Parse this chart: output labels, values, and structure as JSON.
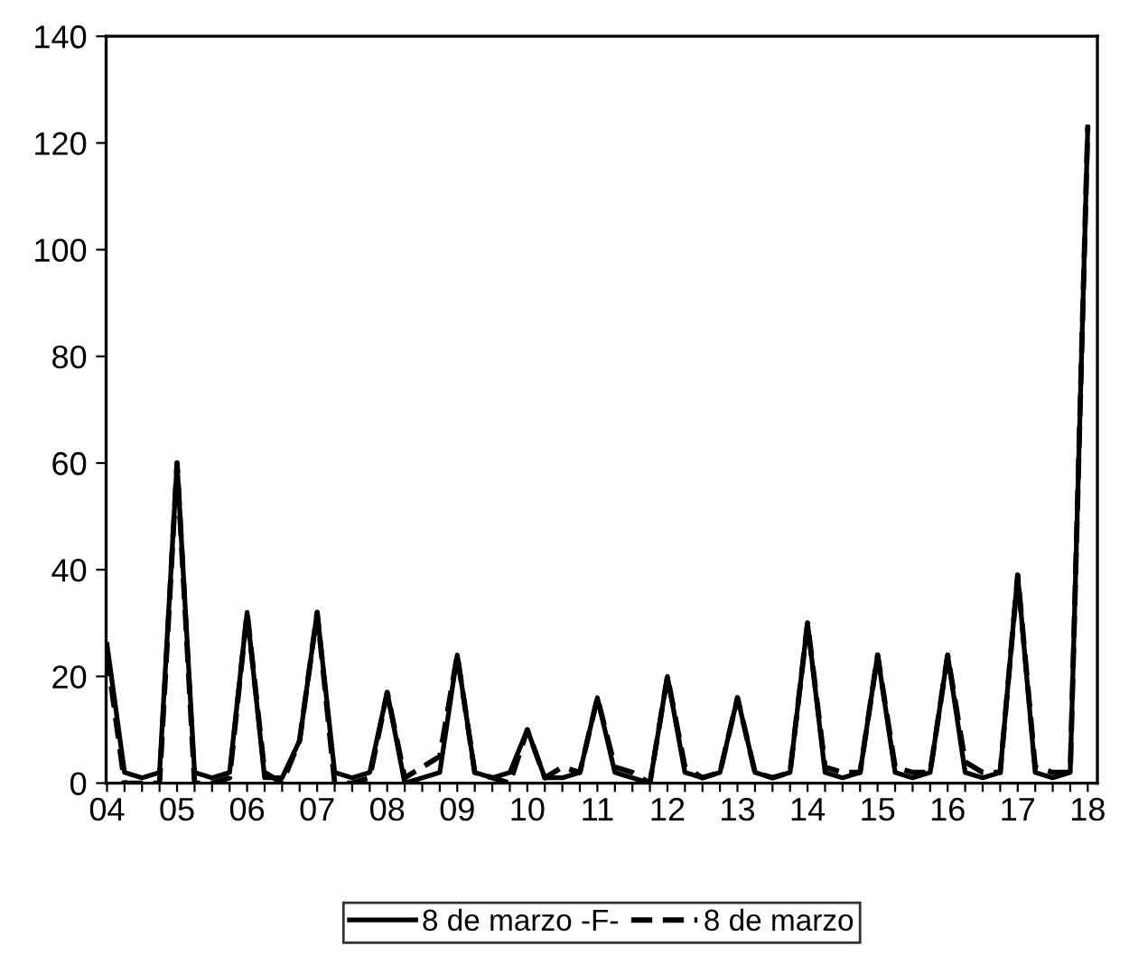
{
  "chart_data": {
    "type": "line",
    "categories": [
      "04",
      null,
      null,
      null,
      "05",
      null,
      null,
      null,
      "06",
      null,
      null,
      null,
      "07",
      null,
      null,
      null,
      "08",
      null,
      null,
      null,
      "09",
      null,
      null,
      null,
      "10",
      null,
      null,
      null,
      "11",
      null,
      null,
      null,
      "12",
      null,
      null,
      null,
      "13",
      null,
      null,
      null,
      "14",
      null,
      null,
      null,
      "15",
      null,
      null,
      null,
      "16",
      null,
      null,
      null,
      "17",
      null,
      null,
      null,
      "18"
    ],
    "series": [
      {
        "name": "8 de marzo -F-",
        "color": "#000000",
        "line_style": "solid",
        "values": [
          26,
          2,
          1,
          2,
          60,
          2,
          1,
          2,
          32,
          1,
          1,
          8,
          32,
          2,
          1,
          2,
          17,
          0,
          1,
          2,
          24,
          2,
          1,
          2,
          10,
          1,
          1,
          2,
          16,
          2,
          1,
          0,
          20,
          2,
          1,
          2,
          16,
          2,
          1,
          2,
          30,
          2,
          1,
          2,
          24,
          2,
          1,
          2,
          24,
          2,
          1,
          2,
          39,
          2,
          1,
          2,
          123
        ]
      },
      {
        "name": "8 de marzo",
        "color": "#000000",
        "line_style": "dashed",
        "values": [
          24,
          0,
          0,
          0,
          60,
          0,
          0,
          1,
          32,
          2,
          0,
          8,
          32,
          0,
          0,
          1,
          17,
          1,
          3,
          5,
          24,
          2,
          1,
          0,
          10,
          1,
          3,
          2,
          16,
          3,
          2,
          0,
          20,
          3,
          1,
          2,
          16,
          2,
          1,
          2,
          30,
          3,
          2,
          2,
          24,
          3,
          2,
          2,
          24,
          4,
          2,
          2,
          39,
          3,
          2,
          2,
          123
        ]
      }
    ],
    "ylim": [
      0,
      140
    ],
    "yticks": [
      0,
      20,
      40,
      60,
      80,
      100,
      120,
      140
    ],
    "grid": false,
    "legend": "bottom",
    "marker": "none"
  }
}
